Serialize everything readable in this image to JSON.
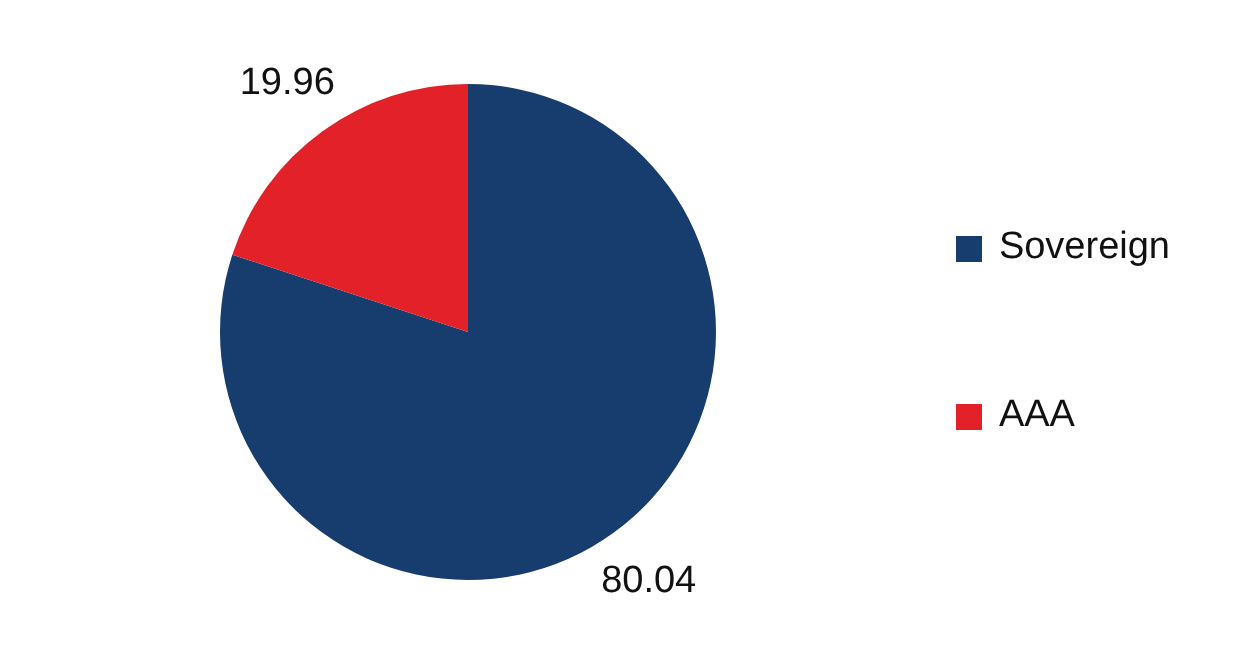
{
  "chart_data": {
    "type": "pie",
    "categories": [
      "Sovereign",
      "AAA"
    ],
    "values": [
      80.04,
      19.96
    ],
    "colors": [
      "#173c6e",
      "#e32129"
    ],
    "data_labels": true,
    "legend": "right"
  }
}
